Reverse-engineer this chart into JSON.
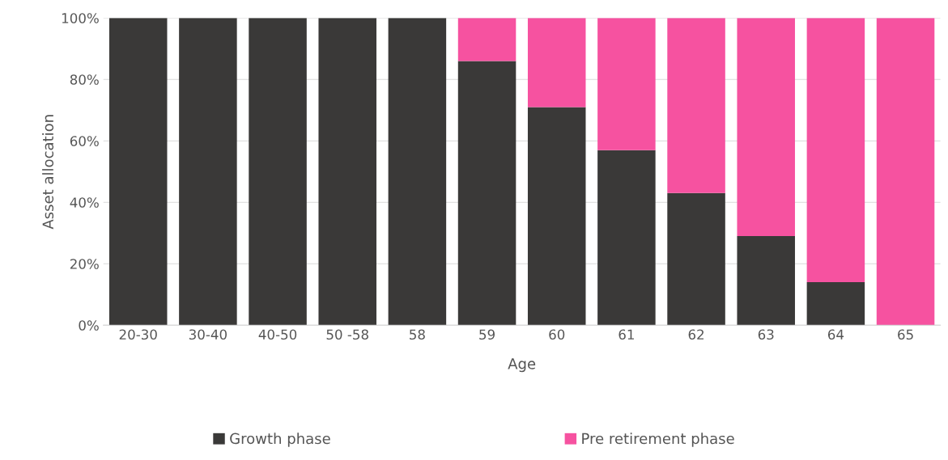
{
  "chart_data": {
    "type": "bar",
    "stacked": true,
    "xlabel": "Age",
    "ylabel": "Asset allocation",
    "categories": [
      "20-30",
      "30-40",
      "40-50",
      "50 -58",
      "58",
      "59",
      "60",
      "61",
      "62",
      "63",
      "64",
      "65"
    ],
    "series": [
      {
        "name": "Growth phase",
        "color": "#3a3938",
        "values": [
          100,
          100,
          100,
          100,
          100,
          86,
          71,
          57,
          43,
          29,
          14,
          0
        ]
      },
      {
        "name": "Pre retirement phase",
        "color": "#f652a0",
        "values": [
          0,
          0,
          0,
          0,
          0,
          14,
          29,
          43,
          57,
          71,
          86,
          100
        ]
      }
    ],
    "ylim": [
      0,
      100
    ],
    "yticks": [
      {
        "value": 0,
        "label": "0%"
      },
      {
        "value": 20,
        "label": "20%"
      },
      {
        "value": 40,
        "label": "40%"
      },
      {
        "value": 60,
        "label": "60%"
      },
      {
        "value": 80,
        "label": "80%"
      },
      {
        "value": 100,
        "label": "100%"
      }
    ],
    "grid": "y",
    "legend": "bottom"
  }
}
